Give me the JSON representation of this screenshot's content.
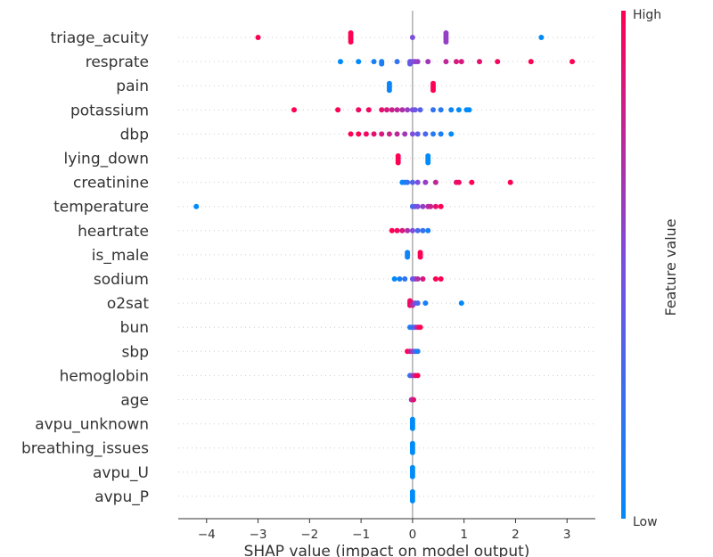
{
  "chart_data": {
    "type": "scatter",
    "subtype": "shap-beeswarm",
    "title": "",
    "xlabel": "SHAP value (impact on model output)",
    "ylabel": "",
    "xlim": [
      -4.55,
      3.55
    ],
    "xticks": [
      -4,
      -3,
      -2,
      -1,
      0,
      1,
      2,
      3
    ],
    "grid": false,
    "colorbar": {
      "title": "Feature value",
      "high_label": "High",
      "low_label": "Low",
      "high_color": "#ff0052",
      "low_color": "#008bfb"
    },
    "features": [
      {
        "name": "triage_acuity",
        "points": [
          [
            -3.0,
            1
          ],
          [
            -1.2,
            1
          ],
          [
            -1.2,
            1
          ],
          [
            -1.2,
            1
          ],
          [
            -1.2,
            1
          ],
          [
            -1.2,
            1
          ],
          [
            0.0,
            0.5
          ],
          [
            0.65,
            0.6
          ],
          [
            0.65,
            0.6
          ],
          [
            0.65,
            0.6
          ],
          [
            0.65,
            0.6
          ],
          [
            0.65,
            0.6
          ],
          [
            2.5,
            0
          ]
        ]
      },
      {
        "name": "resprate",
        "points": [
          [
            -1.4,
            0
          ],
          [
            -1.05,
            0
          ],
          [
            -0.75,
            0.1
          ],
          [
            -0.6,
            0.1
          ],
          [
            -0.6,
            0.1
          ],
          [
            -0.3,
            0.2
          ],
          [
            -0.05,
            0.4
          ],
          [
            -0.05,
            0.4
          ],
          [
            0.0,
            0.5
          ],
          [
            0.05,
            0.55
          ],
          [
            0.1,
            0.6
          ],
          [
            0.3,
            0.65
          ],
          [
            0.65,
            0.75
          ],
          [
            0.85,
            0.85
          ],
          [
            0.95,
            0.85
          ],
          [
            1.3,
            0.9
          ],
          [
            1.65,
            0.95
          ],
          [
            2.3,
            1
          ],
          [
            3.1,
            1
          ]
        ]
      },
      {
        "name": "pain",
        "points": [
          [
            -0.45,
            0.05
          ],
          [
            -0.45,
            0.05
          ],
          [
            -0.45,
            0.05
          ],
          [
            -0.45,
            0.05
          ],
          [
            0.4,
            1
          ],
          [
            0.4,
            1
          ],
          [
            0.4,
            1
          ],
          [
            0.4,
            1
          ]
        ]
      },
      {
        "name": "potassium",
        "points": [
          [
            -2.3,
            1
          ],
          [
            -1.45,
            1
          ],
          [
            -1.05,
            0.95
          ],
          [
            -0.85,
            0.95
          ],
          [
            -0.6,
            0.9
          ],
          [
            -0.5,
            0.85
          ],
          [
            -0.4,
            0.8
          ],
          [
            -0.3,
            0.75
          ],
          [
            -0.2,
            0.7
          ],
          [
            -0.1,
            0.6
          ],
          [
            0.0,
            0.5
          ],
          [
            0.05,
            0.45
          ],
          [
            0.15,
            0.35
          ],
          [
            0.4,
            0.2
          ],
          [
            0.55,
            0.15
          ],
          [
            0.75,
            0.05
          ],
          [
            0.9,
            0
          ],
          [
            1.05,
            0
          ],
          [
            1.1,
            0
          ]
        ]
      },
      {
        "name": "dbp",
        "points": [
          [
            -1.2,
            1
          ],
          [
            -1.05,
            1
          ],
          [
            -0.9,
            0.95
          ],
          [
            -0.75,
            0.9
          ],
          [
            -0.6,
            0.85
          ],
          [
            -0.45,
            0.8
          ],
          [
            -0.3,
            0.75
          ],
          [
            -0.15,
            0.65
          ],
          [
            0.0,
            0.5
          ],
          [
            0.1,
            0.4
          ],
          [
            0.25,
            0.3
          ],
          [
            0.4,
            0.15
          ],
          [
            0.55,
            0.1
          ],
          [
            0.75,
            0
          ]
        ]
      },
      {
        "name": "lying_down",
        "points": [
          [
            -0.28,
            1
          ],
          [
            -0.28,
            1
          ],
          [
            -0.28,
            1
          ],
          [
            -0.28,
            1
          ],
          [
            0.3,
            0
          ],
          [
            0.3,
            0
          ],
          [
            0.3,
            0
          ],
          [
            0.3,
            0
          ]
        ]
      },
      {
        "name": "creatinine",
        "points": [
          [
            -0.2,
            0
          ],
          [
            -0.15,
            0.1
          ],
          [
            -0.1,
            0.2
          ],
          [
            0.0,
            0.35
          ],
          [
            0.1,
            0.5
          ],
          [
            0.25,
            0.6
          ],
          [
            0.45,
            0.75
          ],
          [
            0.85,
            0.9
          ],
          [
            0.9,
            0.95
          ],
          [
            1.15,
            1
          ],
          [
            1.9,
            1
          ]
        ]
      },
      {
        "name": "temperature",
        "points": [
          [
            -4.2,
            0
          ],
          [
            0.0,
            0.3
          ],
          [
            0.05,
            0.4
          ],
          [
            0.1,
            0.5
          ],
          [
            0.2,
            0.6
          ],
          [
            0.3,
            0.7
          ],
          [
            0.35,
            0.8
          ],
          [
            0.45,
            0.9
          ],
          [
            0.55,
            1
          ]
        ]
      },
      {
        "name": "heartrate",
        "points": [
          [
            -0.4,
            1
          ],
          [
            -0.3,
            0.95
          ],
          [
            -0.2,
            0.85
          ],
          [
            -0.1,
            0.7
          ],
          [
            0.0,
            0.5
          ],
          [
            0.1,
            0.3
          ],
          [
            0.2,
            0.2
          ],
          [
            0.3,
            0.1
          ]
        ]
      },
      {
        "name": "is_male",
        "points": [
          [
            -0.1,
            0.05
          ],
          [
            -0.1,
            0.05
          ],
          [
            -0.1,
            0.05
          ],
          [
            0.15,
            1
          ],
          [
            0.15,
            1
          ],
          [
            0.15,
            1
          ]
        ]
      },
      {
        "name": "sodium",
        "points": [
          [
            -0.35,
            0
          ],
          [
            -0.25,
            0.1
          ],
          [
            -0.15,
            0.2
          ],
          [
            0.0,
            0.4
          ],
          [
            0.05,
            0.55
          ],
          [
            0.1,
            0.7
          ],
          [
            0.2,
            0.85
          ],
          [
            0.45,
            1
          ],
          [
            0.55,
            1
          ]
        ]
      },
      {
        "name": "o2sat",
        "points": [
          [
            -0.05,
            1
          ],
          [
            -0.05,
            1
          ],
          [
            -0.05,
            0.95
          ],
          [
            0.0,
            0.85
          ],
          [
            0.0,
            0.7
          ],
          [
            0.05,
            0.5
          ],
          [
            0.1,
            0.3
          ],
          [
            0.25,
            0.1
          ],
          [
            0.95,
            0
          ]
        ]
      },
      {
        "name": "bun",
        "points": [
          [
            -0.05,
            0.1
          ],
          [
            0.0,
            0.2
          ],
          [
            0.05,
            0.5
          ],
          [
            0.1,
            0.8
          ],
          [
            0.15,
            1
          ]
        ]
      },
      {
        "name": "sbp",
        "points": [
          [
            -0.1,
            1
          ],
          [
            -0.05,
            0.85
          ],
          [
            0.0,
            0.6
          ],
          [
            0.05,
            0.3
          ],
          [
            0.1,
            0.1
          ]
        ]
      },
      {
        "name": "hemoglobin",
        "points": [
          [
            -0.05,
            0.2
          ],
          [
            0.0,
            0.6
          ],
          [
            0.05,
            0.85
          ],
          [
            0.1,
            1
          ]
        ]
      },
      {
        "name": "age",
        "points": [
          [
            -0.02,
            0.85
          ],
          [
            0.0,
            0.6
          ],
          [
            0.02,
            0.9
          ]
        ]
      },
      {
        "name": "avpu_unknown",
        "points": [
          [
            0.0,
            0
          ],
          [
            0.0,
            0
          ],
          [
            0.0,
            0
          ],
          [
            0.0,
            0
          ],
          [
            0.0,
            0
          ]
        ]
      },
      {
        "name": "breathing_issues",
        "points": [
          [
            0.0,
            0
          ],
          [
            0.0,
            0
          ],
          [
            0.0,
            0
          ],
          [
            0.0,
            0
          ],
          [
            0.0,
            0
          ]
        ]
      },
      {
        "name": "avpu_U",
        "points": [
          [
            0.0,
            0
          ],
          [
            0.0,
            0
          ],
          [
            0.0,
            0
          ],
          [
            0.0,
            0
          ],
          [
            0.0,
            0
          ]
        ]
      },
      {
        "name": "avpu_P",
        "points": [
          [
            0.0,
            0
          ],
          [
            0.0,
            0
          ],
          [
            0.0,
            0
          ],
          [
            0.0,
            0
          ],
          [
            0.0,
            0
          ]
        ]
      }
    ]
  }
}
